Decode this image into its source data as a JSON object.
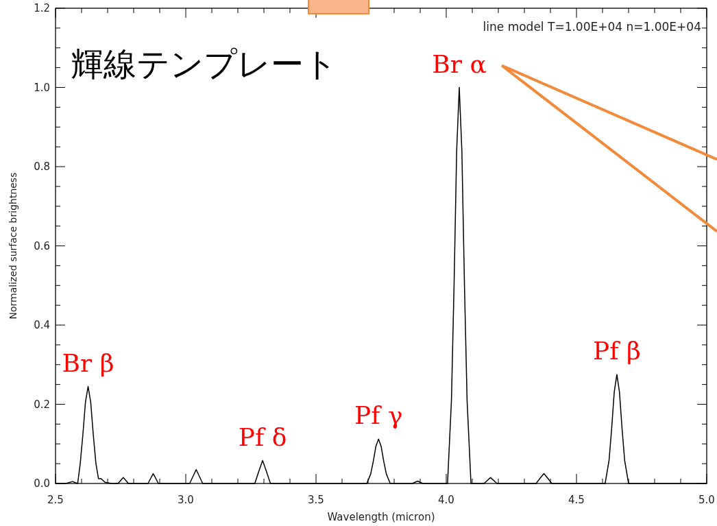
{
  "chart_data": {
    "type": "line",
    "title": "輝線テンプレート",
    "xlabel": "Wavelength (micron)",
    "ylabel": "Normalized surface brightness",
    "xlim": [
      2.5,
      5.0
    ],
    "xticks": [
      {
        "value": 2.5,
        "label": "2.5"
      },
      {
        "value": 3.0,
        "label": "3.0"
      },
      {
        "value": 3.5,
        "label": "3.5"
      },
      {
        "value": 4.0,
        "label": "4.0"
      },
      {
        "value": 4.5,
        "label": "4.5"
      },
      {
        "value": 5.0,
        "label": "5.0"
      }
    ],
    "ylim": [
      0,
      1.2
    ],
    "yticks": [
      {
        "value": 0,
        "label": "0.0"
      },
      {
        "value": 0.2,
        "label": "0.2"
      },
      {
        "value": 0.4,
        "label": "0.4"
      },
      {
        "value": 0.6,
        "label": "0.6"
      },
      {
        "value": 0.8,
        "label": "0.8"
      },
      {
        "value": 1.0,
        "label": "1.0"
      },
      {
        "value": 1.2,
        "label": "1.2"
      }
    ],
    "grid": false,
    "marker": "none",
    "line_style": "solid",
    "series": [
      {
        "color": "#000000",
        "x": [
          2.5,
          2.54,
          2.565,
          2.585,
          2.595,
          2.605,
          2.615,
          2.625,
          2.635,
          2.645,
          2.655,
          2.665,
          2.675,
          2.69,
          2.715,
          2.74,
          2.76,
          2.78,
          2.855,
          2.875,
          2.895,
          3.015,
          3.04,
          3.065,
          3.265,
          3.28,
          3.295,
          3.31,
          3.325,
          3.695,
          3.71,
          3.72,
          3.73,
          3.74,
          3.75,
          3.76,
          3.77,
          3.785,
          3.87,
          3.89,
          3.91,
          4.005,
          4.02,
          4.03,
          4.04,
          4.05,
          4.06,
          4.07,
          4.08,
          4.095,
          4.145,
          4.17,
          4.195,
          4.345,
          4.36,
          4.375,
          4.39,
          4.405,
          4.61,
          4.625,
          4.635,
          4.645,
          4.655,
          4.665,
          4.675,
          4.685,
          4.7,
          5.0
        ],
        "values": [
          0,
          0,
          0.005,
          0,
          0.051,
          0.123,
          0.206,
          0.245,
          0.206,
          0.123,
          0.051,
          0.012,
          0.012,
          0.003,
          0,
          0,
          0.015,
          0,
          0,
          0.025,
          0,
          0,
          0.035,
          0,
          0,
          0.03,
          0.058,
          0.03,
          0,
          0,
          0.024,
          0.056,
          0.094,
          0.112,
          0.094,
          0.056,
          0.024,
          0,
          0,
          0.006,
          0,
          0,
          0.21,
          0.5,
          0.84,
          1.0,
          0.84,
          0.5,
          0.21,
          0,
          0,
          0.015,
          0,
          0,
          0.013,
          0.025,
          0.013,
          0,
          0,
          0.058,
          0.138,
          0.231,
          0.275,
          0.231,
          0.138,
          0.058,
          0,
          0
        ]
      }
    ],
    "annotations": [
      "line model T=1.00E+04 n=1.00E+04",
      {
        "text": "Br β",
        "x": 2.625,
        "y": 0.245
      },
      {
        "text": "Pf δ",
        "x": 3.295,
        "y": 0.058
      },
      {
        "text": "Pf γ",
        "x": 3.74,
        "y": 0.112
      },
      {
        "text": "Br α",
        "x": 4.05,
        "y": 1.0
      },
      {
        "text": "Pf β",
        "x": 4.655,
        "y": 0.275
      }
    ]
  }
}
